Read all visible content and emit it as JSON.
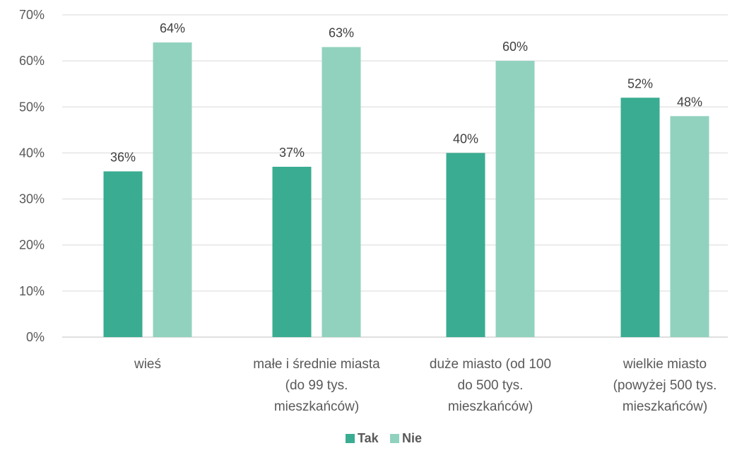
{
  "chart_data": {
    "type": "bar",
    "categories": [
      [
        "wieś"
      ],
      [
        "małe i średnie miasta",
        "(do 99 tys.",
        "mieszkańców)"
      ],
      [
        "duże miasto (od 100",
        "do 500 tys.",
        "mieszkańców)"
      ],
      [
        "wielkie miasto",
        "(powyżej 500 tys.",
        "mieszkańców)"
      ]
    ],
    "series": [
      {
        "name": "Tak",
        "color": "#3aac91",
        "values": [
          36,
          37,
          40,
          52
        ],
        "labels": [
          "36%",
          "37%",
          "40%",
          "52%"
        ]
      },
      {
        "name": "Nie",
        "color": "#91d2bf",
        "values": [
          64,
          63,
          60,
          48
        ],
        "labels": [
          "64%",
          "63%",
          "60%",
          "48%"
        ]
      }
    ],
    "y_ticks": [
      "0%",
      "10%",
      "20%",
      "30%",
      "40%",
      "50%",
      "60%",
      "70%"
    ],
    "ylim": [
      0,
      70
    ],
    "grid": true,
    "legend_position": "bottom"
  }
}
